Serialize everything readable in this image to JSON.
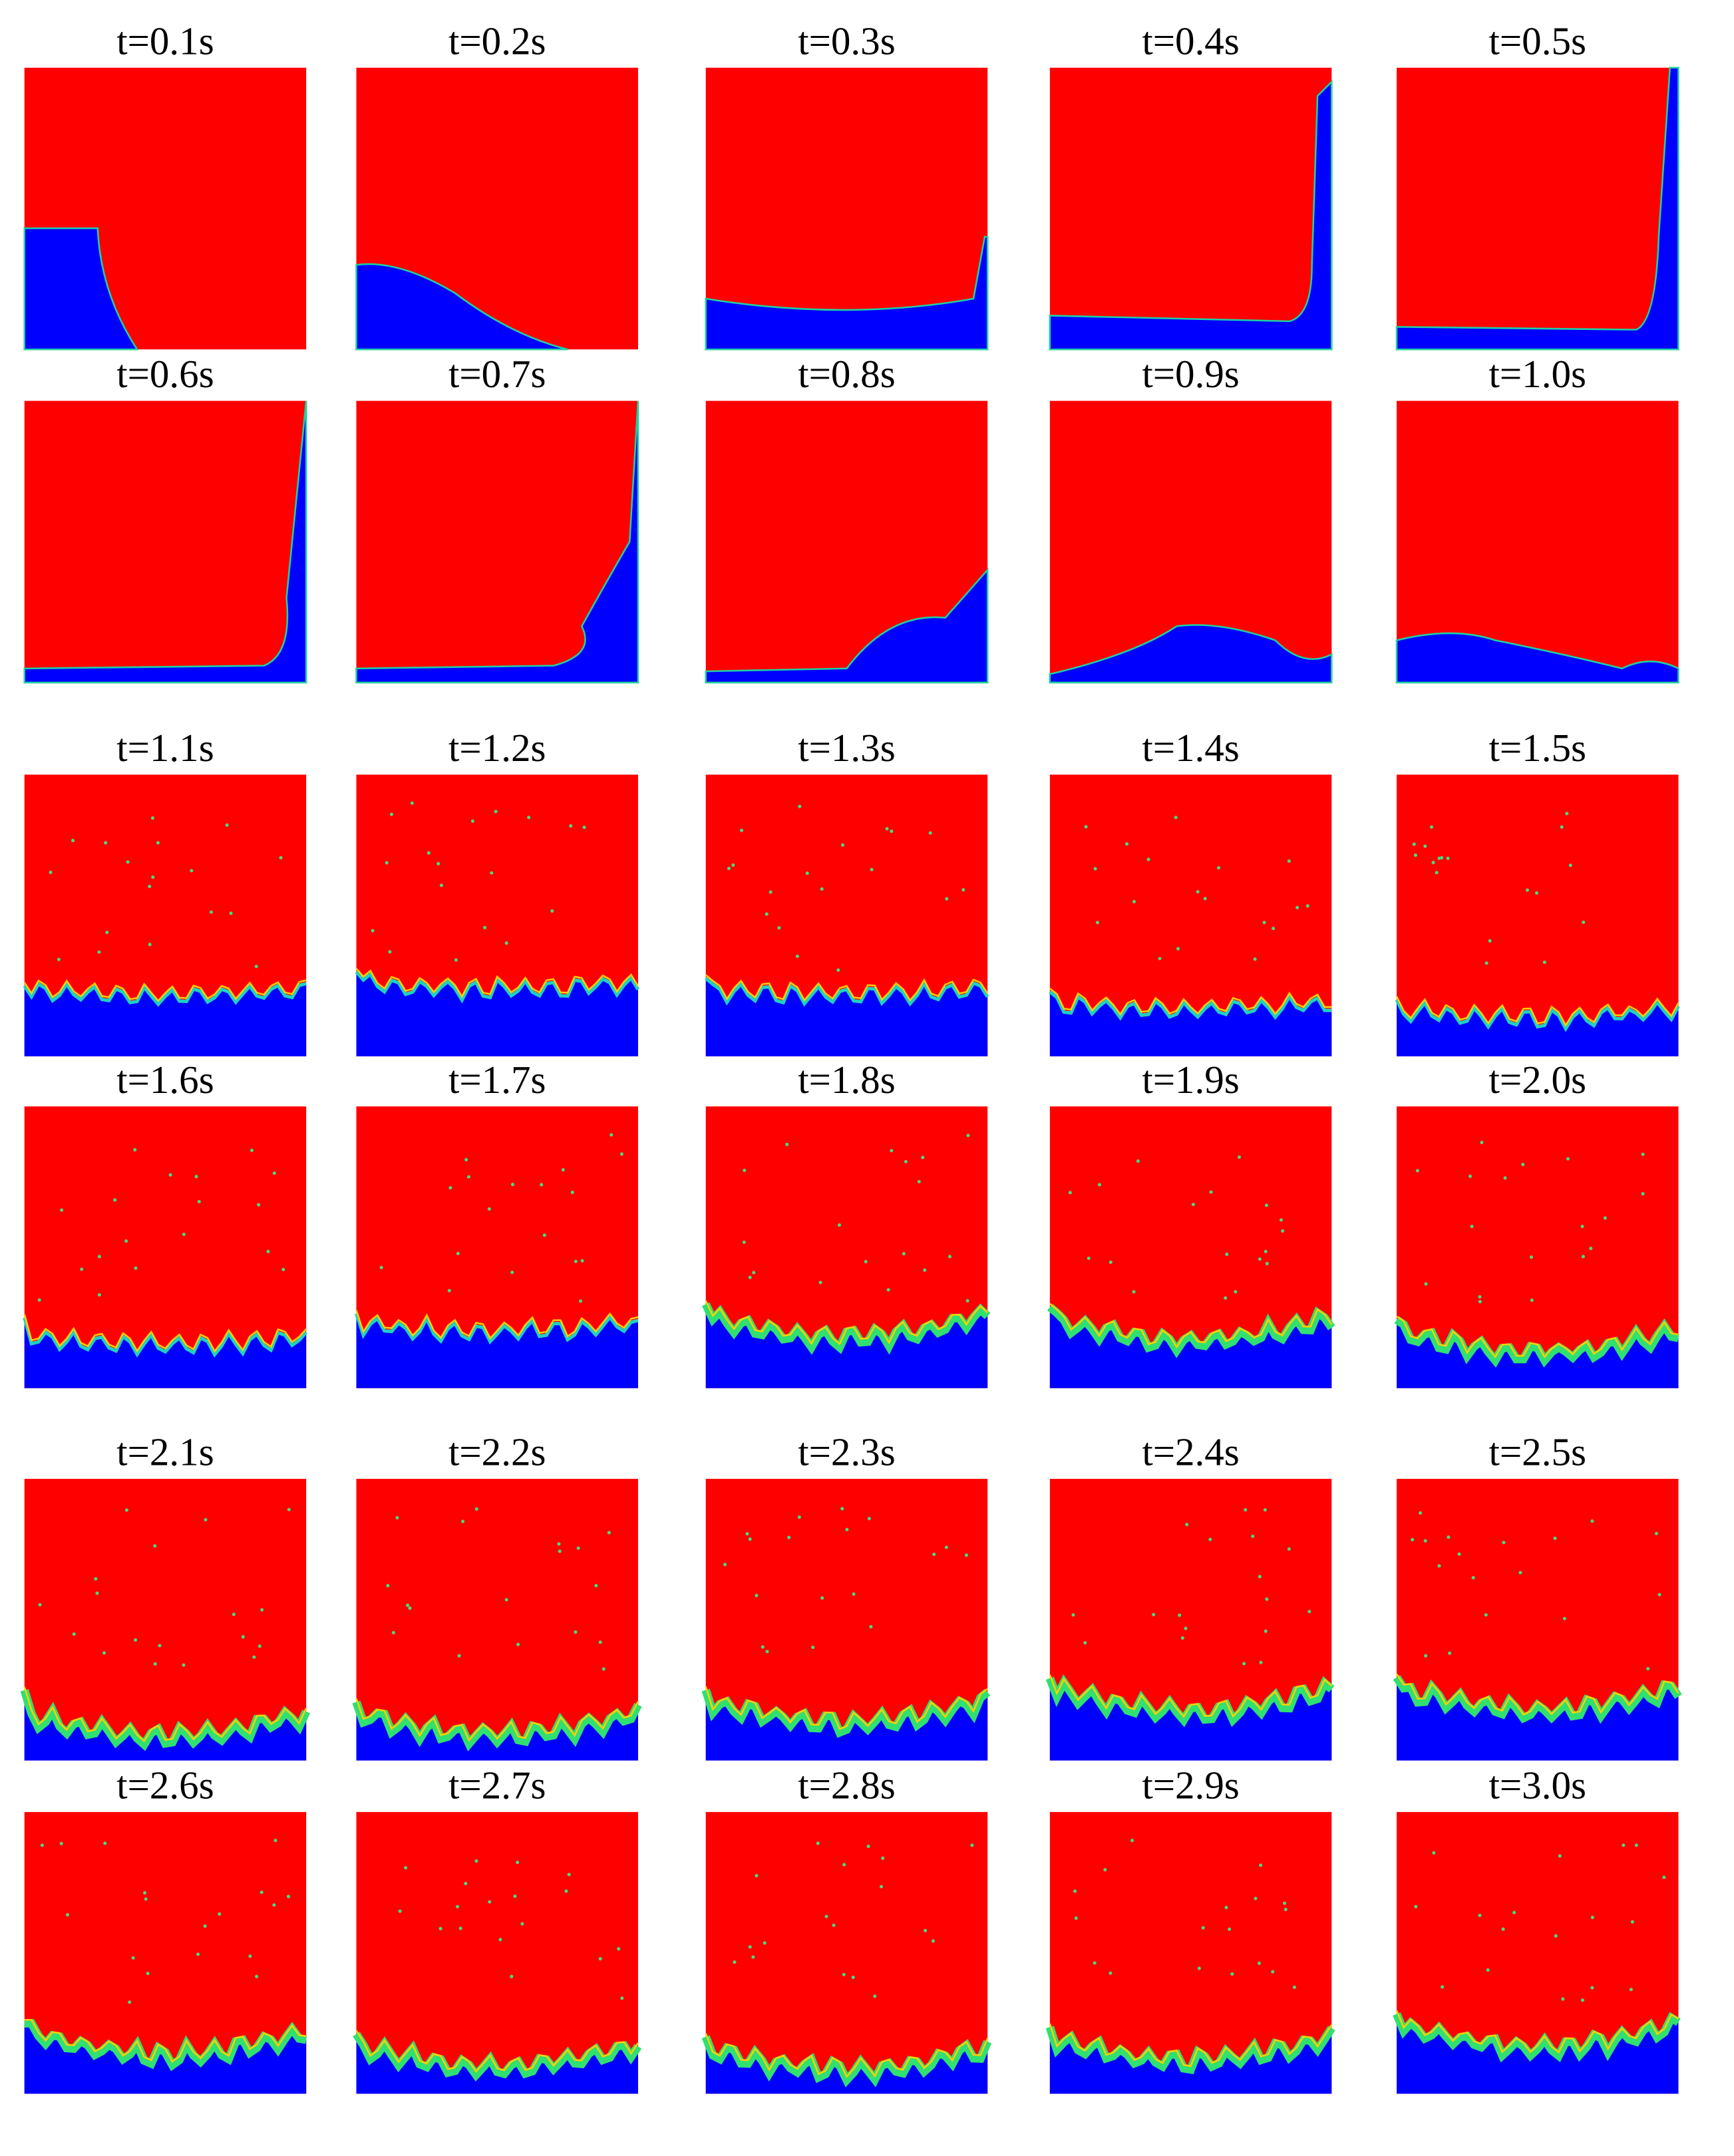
{
  "panels": [
    {
      "label": "t=0.1s"
    },
    {
      "label": "t=0.2s"
    },
    {
      "label": "t=0.3s"
    },
    {
      "label": "t=0.4s"
    },
    {
      "label": "t=0.5s"
    },
    {
      "label": "t=0.6s"
    },
    {
      "label": "t=0.7s"
    },
    {
      "label": "t=0.8s"
    },
    {
      "label": "t=0.9s"
    },
    {
      "label": "t=1.0s"
    },
    {
      "label": "t=1.1s"
    },
    {
      "label": "t=1.2s"
    },
    {
      "label": "t=1.3s"
    },
    {
      "label": "t=1.4s"
    },
    {
      "label": "t=1.5s"
    },
    {
      "label": "t=1.6s"
    },
    {
      "label": "t=1.7s"
    },
    {
      "label": "t=1.8s"
    },
    {
      "label": "t=1.9s"
    },
    {
      "label": "t=2.0s"
    },
    {
      "label": "t=2.1s"
    },
    {
      "label": "t=2.2s"
    },
    {
      "label": "t=2.3s"
    },
    {
      "label": "t=2.4s"
    },
    {
      "label": "t=2.5s"
    },
    {
      "label": "t=2.6s"
    },
    {
      "label": "t=2.7s"
    },
    {
      "label": "t=2.8s"
    },
    {
      "label": "t=2.9s"
    },
    {
      "label": "t=3.0s"
    }
  ]
}
